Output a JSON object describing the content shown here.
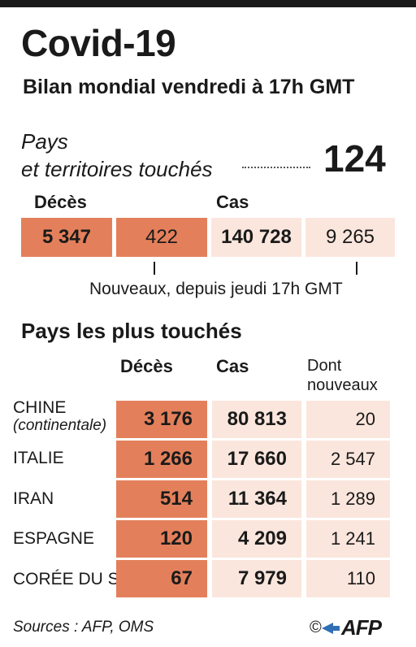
{
  "title": "Covid-19",
  "subtitle": "Bilan mondial vendredi à 17h GMT",
  "pays": {
    "line1": "Pays",
    "line2": "et territoires touchés",
    "count": "124"
  },
  "summary": {
    "deaths_header": "Décès",
    "cases_header": "Cas",
    "deaths_total": "5 347",
    "deaths_new": "422",
    "cases_total": "140 728",
    "cases_new": "9 265",
    "note": "Nouveaux, depuis jeudi 17h GMT"
  },
  "section_title": "Pays les plus touchés",
  "table": {
    "headers": {
      "deaths": "Décès",
      "cases": "Cas",
      "new_line1": "Dont",
      "new_line2": "nouveaux"
    },
    "rows": [
      {
        "name": "CHINE",
        "sub": "(continentale)",
        "deaths": "3 176",
        "cases": "80 813",
        "new": "20"
      },
      {
        "name": "ITALIE",
        "sub": "",
        "deaths": "1 266",
        "cases": "17 660",
        "new": "2 547"
      },
      {
        "name": "IRAN",
        "sub": "",
        "deaths": "514",
        "cases": "11 364",
        "new": "1 289"
      },
      {
        "name": "ESPAGNE",
        "sub": "",
        "deaths": "120",
        "cases": "4 209",
        "new": "1 241"
      },
      {
        "name": "CORÉE DU S.",
        "sub": "",
        "deaths": "67",
        "cases": "7 979",
        "new": "110"
      }
    ]
  },
  "footer": {
    "sources": "Sources : AFP, OMS",
    "copyright": "©",
    "logo": "AFP"
  },
  "colors": {
    "dark_cell": "#e3805b",
    "light_cell": "#fbe6dd",
    "logo_accent": "#2f6fb5"
  }
}
